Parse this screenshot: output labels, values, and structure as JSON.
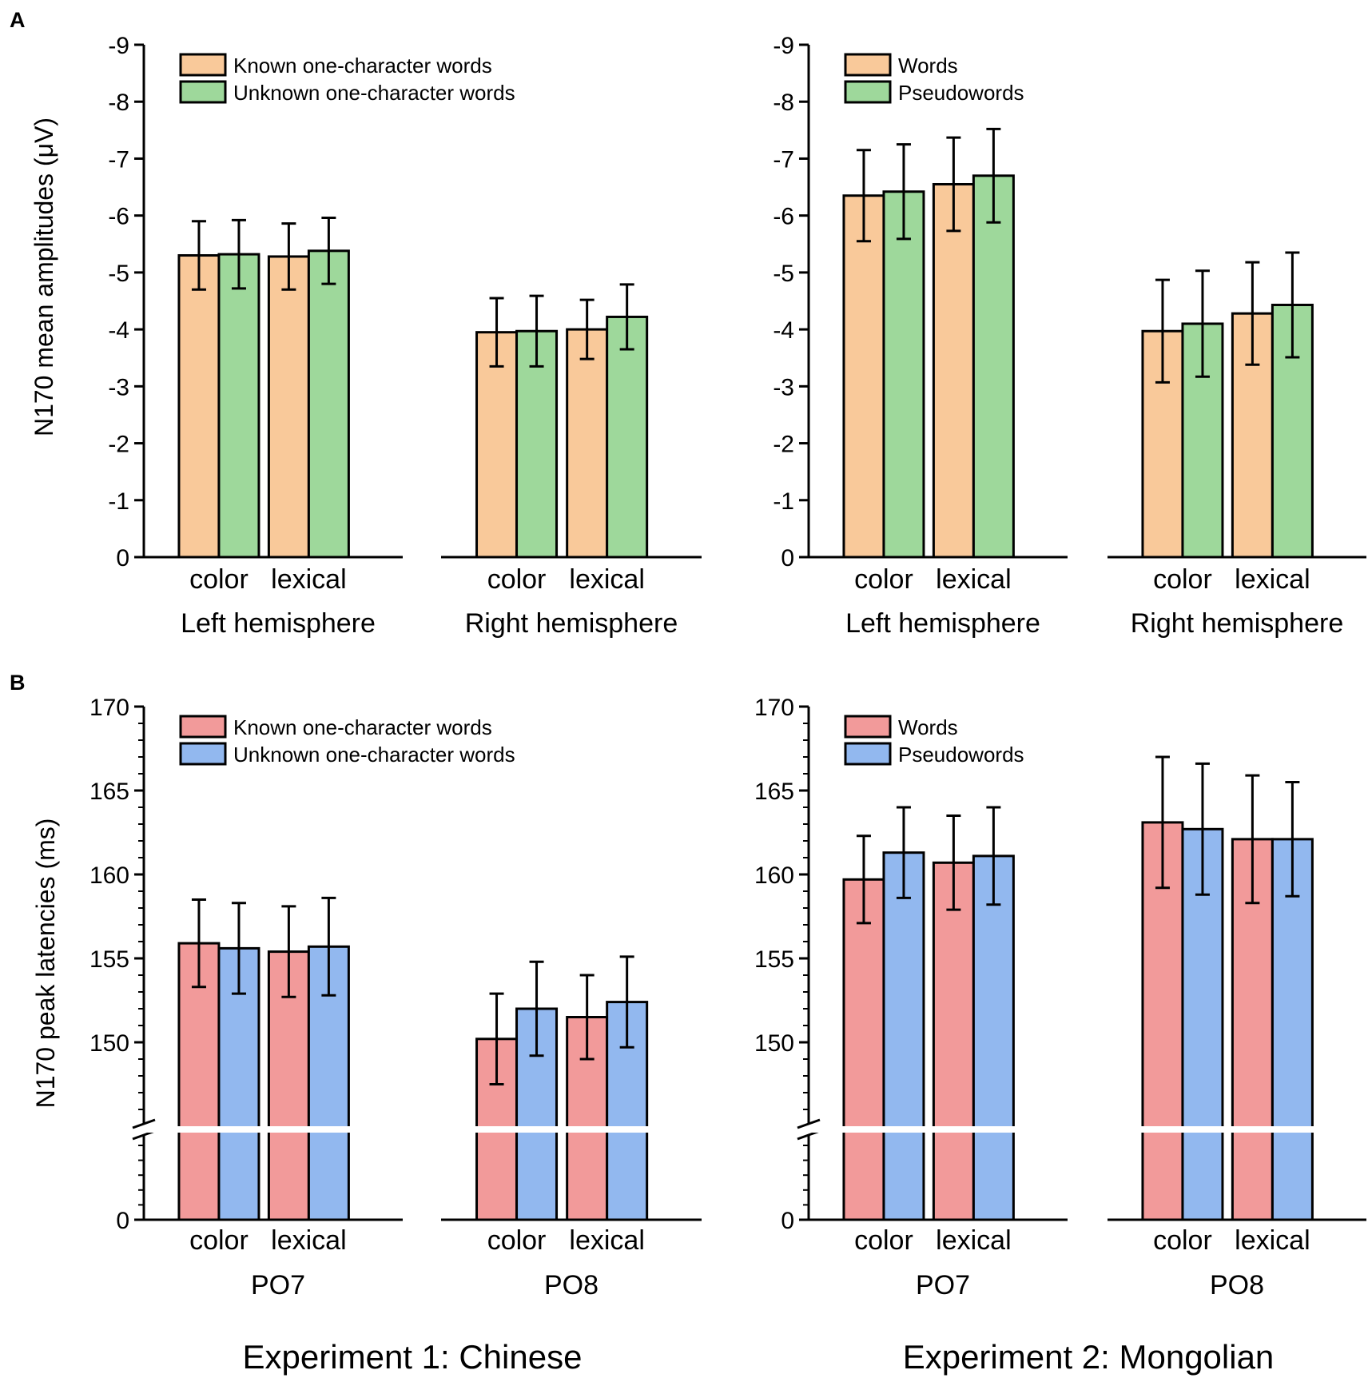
{
  "figure": {
    "panel_letters": [
      "A",
      "B"
    ],
    "experiment_labels": [
      "Experiment 1: Chinese",
      "Experiment 2: Mongolian"
    ]
  },
  "colors": {
    "peach": "#F9C99A",
    "green": "#9ED89B",
    "red": "#F29A9A",
    "blue": "#92B8EF",
    "axis": "#000000"
  },
  "chart_data": [
    {
      "id": "A-exp1",
      "type": "bar",
      "row": "A",
      "experiment": "Experiment 1: Chinese",
      "ylabel": "N170 mean amplitudes (μV)",
      "ylim": [
        0,
        -9
      ],
      "yticks": [
        "0",
        "-1",
        "-2",
        "-3",
        "-4",
        "-5",
        "-6",
        "-7",
        "-8",
        "-9"
      ],
      "colors": [
        "#F9C99A",
        "#9ED89B"
      ],
      "legend": [
        "Known one-character words",
        "Unknown one-character words"
      ],
      "groups": [
        {
          "name": "Left hemisphere",
          "categories": [
            "color",
            "lexical"
          ],
          "series": [
            {
              "name": "Known one-character words",
              "values": [
                -5.3,
                -5.28
              ],
              "errors": [
                0.6,
                0.58
              ]
            },
            {
              "name": "Unknown one-character words",
              "values": [
                -5.32,
                -5.38
              ],
              "errors": [
                0.6,
                0.58
              ]
            }
          ]
        },
        {
          "name": "Right hemisphere",
          "categories": [
            "color",
            "lexical"
          ],
          "series": [
            {
              "name": "Known one-character words",
              "values": [
                -3.95,
                -4.0
              ],
              "errors": [
                0.6,
                0.52
              ]
            },
            {
              "name": "Unknown one-character words",
              "values": [
                -3.97,
                -4.22
              ],
              "errors": [
                0.62,
                0.57
              ]
            }
          ]
        }
      ]
    },
    {
      "id": "A-exp2",
      "type": "bar",
      "row": "A",
      "experiment": "Experiment 2: Mongolian",
      "ylabel": "",
      "ylim": [
        0,
        -9
      ],
      "yticks": [
        "0",
        "-1",
        "-2",
        "-3",
        "-4",
        "-5",
        "-6",
        "-7",
        "-8",
        "-9"
      ],
      "colors": [
        "#F9C99A",
        "#9ED89B"
      ],
      "legend": [
        "Words",
        "Pseudowords"
      ],
      "groups": [
        {
          "name": "Left hemisphere",
          "categories": [
            "color",
            "lexical"
          ],
          "series": [
            {
              "name": "Words",
              "values": [
                -6.35,
                -6.55
              ],
              "errors": [
                0.8,
                0.82
              ]
            },
            {
              "name": "Pseudowords",
              "values": [
                -6.42,
                -6.7
              ],
              "errors": [
                0.83,
                0.82
              ]
            }
          ]
        },
        {
          "name": "Right hemisphere",
          "categories": [
            "color",
            "lexical"
          ],
          "series": [
            {
              "name": "Words",
              "values": [
                -3.97,
                -4.28
              ],
              "errors": [
                0.9,
                0.9
              ]
            },
            {
              "name": "Pseudowords",
              "values": [
                -4.1,
                -4.43
              ],
              "errors": [
                0.93,
                0.92
              ]
            }
          ]
        }
      ]
    },
    {
      "id": "B-exp1",
      "type": "bar",
      "row": "B",
      "experiment": "Experiment 1: Chinese",
      "ylabel": "N170 peak latencies (ms)",
      "ylim": [
        145,
        170
      ],
      "axis_break": true,
      "yticks": [
        "0",
        "150",
        "155",
        "160",
        "165",
        "170"
      ],
      "colors": [
        "#F29A9A",
        "#92B8EF"
      ],
      "legend": [
        "Known one-character words",
        "Unknown one-character words"
      ],
      "groups": [
        {
          "name": "PO7",
          "categories": [
            "color",
            "lexical"
          ],
          "series": [
            {
              "name": "Known one-character words",
              "values": [
                155.9,
                155.4
              ],
              "errors": [
                2.6,
                2.7
              ]
            },
            {
              "name": "Unknown one-character words",
              "values": [
                155.6,
                155.7
              ],
              "errors": [
                2.7,
                2.9
              ]
            }
          ]
        },
        {
          "name": "PO8",
          "categories": [
            "color",
            "lexical"
          ],
          "series": [
            {
              "name": "Known one-character words",
              "values": [
                150.2,
                151.5
              ],
              "errors": [
                2.7,
                2.5
              ]
            },
            {
              "name": "Unknown one-character words",
              "values": [
                152.0,
                152.4
              ],
              "errors": [
                2.8,
                2.7
              ]
            }
          ]
        }
      ]
    },
    {
      "id": "B-exp2",
      "type": "bar",
      "row": "B",
      "experiment": "Experiment 2: Mongolian",
      "ylabel": "",
      "ylim": [
        145,
        170
      ],
      "axis_break": true,
      "yticks": [
        "0",
        "150",
        "155",
        "160",
        "165",
        "170"
      ],
      "colors": [
        "#F29A9A",
        "#92B8EF"
      ],
      "legend": [
        "Words",
        "Pseudowords"
      ],
      "groups": [
        {
          "name": "PO7",
          "categories": [
            "color",
            "lexical"
          ],
          "series": [
            {
              "name": "Words",
              "values": [
                159.7,
                160.7
              ],
              "errors": [
                2.6,
                2.8
              ]
            },
            {
              "name": "Pseudowords",
              "values": [
                161.3,
                161.1
              ],
              "errors": [
                2.7,
                2.9
              ]
            }
          ]
        },
        {
          "name": "PO8",
          "categories": [
            "color",
            "lexical"
          ],
          "series": [
            {
              "name": "Words",
              "values": [
                163.1,
                162.1
              ],
              "errors": [
                3.9,
                3.8
              ]
            },
            {
              "name": "Pseudowords",
              "values": [
                162.7,
                162.1
              ],
              "errors": [
                3.9,
                3.4
              ]
            }
          ]
        }
      ]
    }
  ]
}
